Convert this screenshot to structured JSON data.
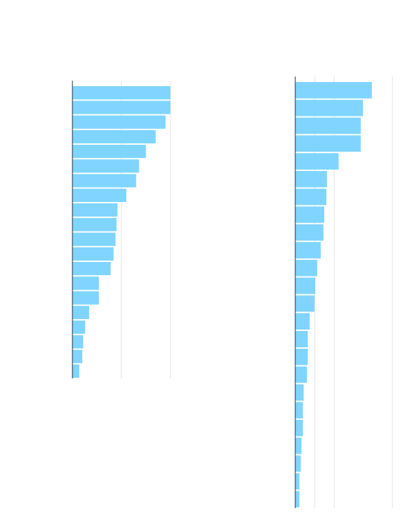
{
  "chart_data": [
    {
      "type": "barh",
      "categories": [
        null,
        null,
        null,
        null,
        null,
        null,
        null,
        null,
        null,
        null,
        null,
        null,
        null,
        null,
        null,
        null,
        null,
        null,
        null,
        null
      ],
      "values": [
        100,
        100,
        95,
        85,
        75,
        68,
        65,
        55,
        46,
        45,
        44,
        42,
        39,
        27,
        27,
        17,
        13,
        11,
        10,
        7
      ],
      "color": "#7fd5ff",
      "xlim": [
        0,
        100
      ],
      "xticks": [
        0,
        50,
        100
      ],
      "grid": true
    },
    {
      "type": "barh",
      "categories": [
        null,
        null,
        null,
        null,
        null,
        null,
        null,
        null,
        null,
        null,
        null,
        null,
        null,
        null,
        null,
        null,
        null,
        null,
        null,
        null,
        null,
        null,
        null,
        null
      ],
      "values": [
        39.4,
        34.8,
        33.7,
        33.7,
        22.3,
        16.3,
        16,
        14.9,
        14.5,
        13.1,
        11.3,
        10.3,
        9.9,
        7.4,
        6.4,
        6.4,
        6,
        4.3,
        3.9,
        3.9,
        3.2,
        2.8,
        2.1,
        2.1
      ],
      "color": "#7fd5ff",
      "xlim": [
        0,
        60
      ],
      "xticks": [
        0,
        10,
        20,
        50
      ],
      "grid": true
    }
  ]
}
